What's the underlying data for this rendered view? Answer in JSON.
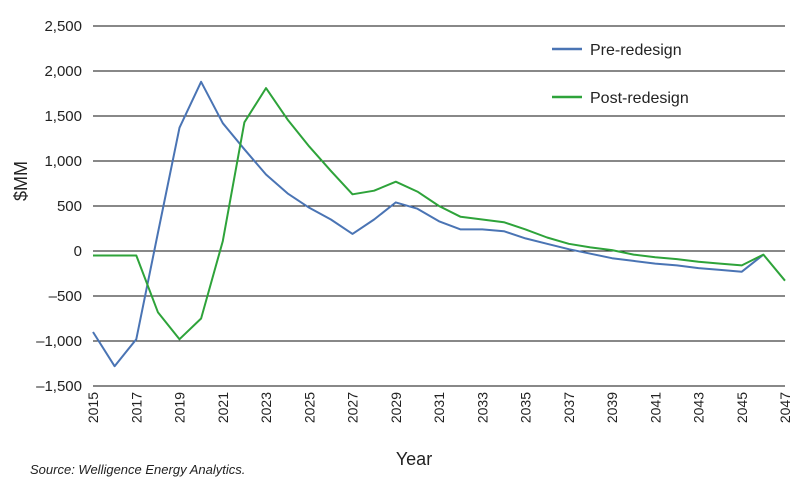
{
  "chart_data": {
    "type": "line",
    "title": "",
    "xlabel": "Year",
    "ylabel": "$MM",
    "x": [
      2015,
      2016,
      2017,
      2018,
      2019,
      2020,
      2021,
      2022,
      2023,
      2024,
      2025,
      2026,
      2027,
      2028,
      2029,
      2030,
      2031,
      2032,
      2033,
      2034,
      2035,
      2036,
      2037,
      2038,
      2039,
      2040,
      2041,
      2042,
      2043,
      2044,
      2045,
      2046,
      2047
    ],
    "x_tick_labels": [
      "2015",
      "2017",
      "2019",
      "2021",
      "2023",
      "2025",
      "2027",
      "2029",
      "2031",
      "2033",
      "2035",
      "2037",
      "2039",
      "2041",
      "2043",
      "2045",
      "2047"
    ],
    "ylim": [
      -1500,
      2500
    ],
    "y_ticks": [
      2500,
      2000,
      1500,
      1000,
      500,
      0,
      -500,
      -1000,
      -1500
    ],
    "y_tick_labels": [
      "2,500",
      "2,000",
      "1,500",
      "1,000",
      "500",
      "0",
      "–500",
      "–1,000",
      "–1,500"
    ],
    "grid": true,
    "legend_position": "top-right",
    "series": [
      {
        "name": "Pre-redesign",
        "color": "#4a74b4",
        "values": [
          -900,
          -1280,
          -980,
          200,
          1370,
          1880,
          1420,
          1130,
          850,
          640,
          480,
          350,
          190,
          350,
          540,
          470,
          330,
          240,
          240,
          220,
          140,
          80,
          20,
          -30,
          -80,
          -110,
          -140,
          -160,
          -190,
          -210,
          -230,
          -40,
          null
        ]
      },
      {
        "name": "Post-redesign",
        "color": "#2ea33a",
        "values": [
          -50,
          -50,
          -50,
          -680,
          -980,
          -750,
          110,
          1430,
          1810,
          1460,
          1160,
          890,
          630,
          670,
          770,
          660,
          500,
          380,
          350,
          320,
          240,
          150,
          80,
          40,
          10,
          -40,
          -70,
          -90,
          -120,
          -140,
          -160,
          -40,
          -330
        ]
      }
    ],
    "source": "Source: Welligence Energy Analytics."
  }
}
